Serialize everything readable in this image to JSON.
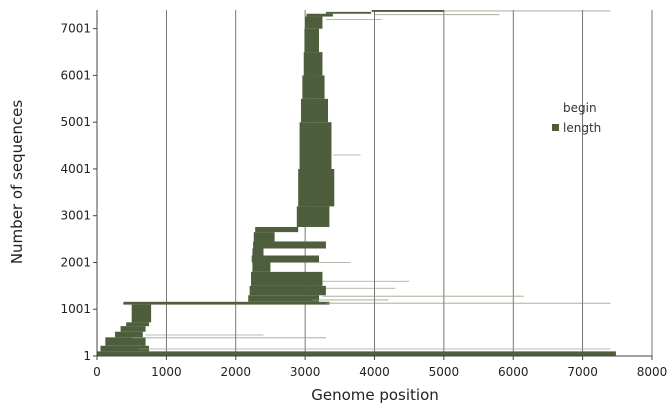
{
  "chart_data": {
    "type": "bar",
    "orientation": "horizontal",
    "stacked": true,
    "xlabel": "Genome position",
    "ylabel": "Number of sequences",
    "xlim": [
      0,
      8000
    ],
    "ylim": [
      1,
      7400
    ],
    "x_ticks": [
      "0",
      "1000",
      "2000",
      "3000",
      "4000",
      "5000",
      "6000",
      "7000",
      "8000"
    ],
    "y_ticks": [
      "1",
      "1001",
      "2001",
      "3001",
      "4001",
      "5001",
      "6001",
      "7001"
    ],
    "grid": "vertical",
    "legend_position": "right",
    "colors": {
      "begin": "none",
      "length": "#4e5e3c",
      "grid": "#555555",
      "axis": "#444444"
    },
    "legend": {
      "begin_label": "begin",
      "length_label": "length"
    },
    "series": [
      {
        "name": "begin",
        "visible": false
      },
      {
        "name": "length",
        "color": "#4e5e3c",
        "bands": [
          {
            "y_start": 1,
            "y_end": 100,
            "begin": 0,
            "end": 7480
          },
          {
            "y_start": 100,
            "y_end": 220,
            "begin": 50,
            "end": 750
          },
          {
            "y_start": 220,
            "y_end": 400,
            "begin": 120,
            "end": 700
          },
          {
            "y_start": 400,
            "y_end": 520,
            "begin": 260,
            "end": 660
          },
          {
            "y_start": 520,
            "y_end": 640,
            "begin": 340,
            "end": 700
          },
          {
            "y_start": 640,
            "y_end": 720,
            "begin": 420,
            "end": 750
          },
          {
            "y_start": 720,
            "y_end": 1100,
            "begin": 500,
            "end": 780
          },
          {
            "y_start": 1100,
            "y_end": 1160,
            "begin": 380,
            "end": 3350
          },
          {
            "y_start": 1160,
            "y_end": 1300,
            "begin": 2180,
            "end": 3200
          },
          {
            "y_start": 1300,
            "y_end": 1500,
            "begin": 2200,
            "end": 3300
          },
          {
            "y_start": 1500,
            "y_end": 1800,
            "begin": 2220,
            "end": 3250
          },
          {
            "y_start": 1800,
            "y_end": 2000,
            "begin": 2240,
            "end": 2500
          },
          {
            "y_start": 2000,
            "y_end": 2150,
            "begin": 2230,
            "end": 3200
          },
          {
            "y_start": 2150,
            "y_end": 2300,
            "begin": 2240,
            "end": 2400
          },
          {
            "y_start": 2300,
            "y_end": 2450,
            "begin": 2250,
            "end": 3300
          },
          {
            "y_start": 2450,
            "y_end": 2650,
            "begin": 2260,
            "end": 2560
          },
          {
            "y_start": 2650,
            "y_end": 2760,
            "begin": 2280,
            "end": 2900
          },
          {
            "y_start": 2760,
            "y_end": 3200,
            "begin": 2880,
            "end": 3350
          },
          {
            "y_start": 3200,
            "y_end": 4000,
            "begin": 2900,
            "end": 3420
          },
          {
            "y_start": 4000,
            "y_end": 5000,
            "begin": 2920,
            "end": 3380
          },
          {
            "y_start": 5000,
            "y_end": 5500,
            "begin": 2940,
            "end": 3330
          },
          {
            "y_start": 5500,
            "y_end": 6000,
            "begin": 2960,
            "end": 3280
          },
          {
            "y_start": 6000,
            "y_end": 6500,
            "begin": 2980,
            "end": 3250
          },
          {
            "y_start": 6500,
            "y_end": 7000,
            "begin": 2990,
            "end": 3200
          },
          {
            "y_start": 7000,
            "y_end": 7260,
            "begin": 3000,
            "end": 3250
          },
          {
            "y_start": 7260,
            "y_end": 7320,
            "begin": 3020,
            "end": 3400
          },
          {
            "y_start": 7320,
            "y_end": 7360,
            "begin": 3300,
            "end": 3950
          },
          {
            "y_start": 7360,
            "y_end": 7400,
            "begin": 3960,
            "end": 5000
          }
        ],
        "outliers": [
          {
            "y": 150,
            "begin": 600,
            "end": 7400
          },
          {
            "y": 390,
            "begin": 500,
            "end": 3300
          },
          {
            "y": 450,
            "begin": 700,
            "end": 2400
          },
          {
            "y": 1130,
            "begin": 3300,
            "end": 7400
          },
          {
            "y": 1200,
            "begin": 3100,
            "end": 4200
          },
          {
            "y": 1280,
            "begin": 3250,
            "end": 6150
          },
          {
            "y": 1450,
            "begin": 3300,
            "end": 4300
          },
          {
            "y": 1600,
            "begin": 3250,
            "end": 4500
          },
          {
            "y": 2000,
            "begin": 3200,
            "end": 3650
          },
          {
            "y": 4300,
            "begin": 3400,
            "end": 3800
          },
          {
            "y": 7200,
            "begin": 3300,
            "end": 4100
          },
          {
            "y": 7380,
            "begin": 5000,
            "end": 7400
          },
          {
            "y": 7300,
            "begin": 4000,
            "end": 5800
          }
        ]
      }
    ]
  }
}
